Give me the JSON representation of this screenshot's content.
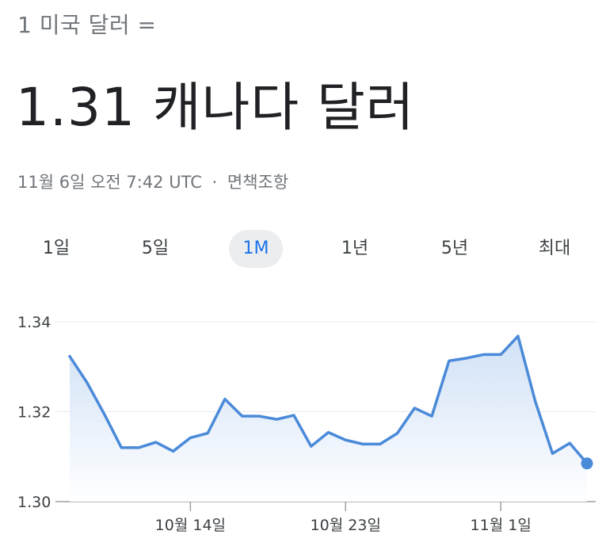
{
  "converter": {
    "from_text": "1 미국 달러 =",
    "to_text": "1.31 캐나다 달러",
    "timestamp": "11월 6일 오전 7:42 UTC",
    "separator": "·",
    "disclaimer": "면책조항"
  },
  "range_tabs": {
    "items": [
      "1일",
      "5일",
      "1M",
      "1년",
      "5년",
      "최대"
    ],
    "active": "1M"
  },
  "colors": {
    "line": "#4a8ad9",
    "fill_top": "#cfe0f6",
    "fill_bottom": "#ffffff",
    "grid": "#e8eaed",
    "axis": "#3c4043",
    "active_tab_bg": "#ecedef",
    "active_tab_text": "#1a73e8"
  },
  "chart_data": {
    "type": "area",
    "series": [
      {
        "values": [
          1.3323,
          1.3265,
          1.3195,
          1.312,
          1.312,
          1.3132,
          1.3112,
          1.3142,
          1.3152,
          1.3228,
          1.319,
          1.319,
          1.3183,
          1.3192,
          1.3123,
          1.3154,
          1.3137,
          1.3128,
          1.3128,
          1.3152,
          1.3208,
          1.319,
          1.3313,
          1.3319,
          1.3327,
          1.3327,
          1.3368,
          1.3223,
          1.3107,
          1.313,
          1.3085
        ]
      }
    ],
    "y_ticks": [
      "1.34",
      "1.32",
      "1.30"
    ],
    "y_tick_values": [
      1.34,
      1.32,
      1.3
    ],
    "ylim": [
      1.3,
      1.34
    ],
    "x_ticks": [
      "10월 14일",
      "10월 23일",
      "11월 1일"
    ],
    "x_tick_indices": [
      7,
      16,
      25
    ],
    "grid": true,
    "last_point_marker": true
  }
}
